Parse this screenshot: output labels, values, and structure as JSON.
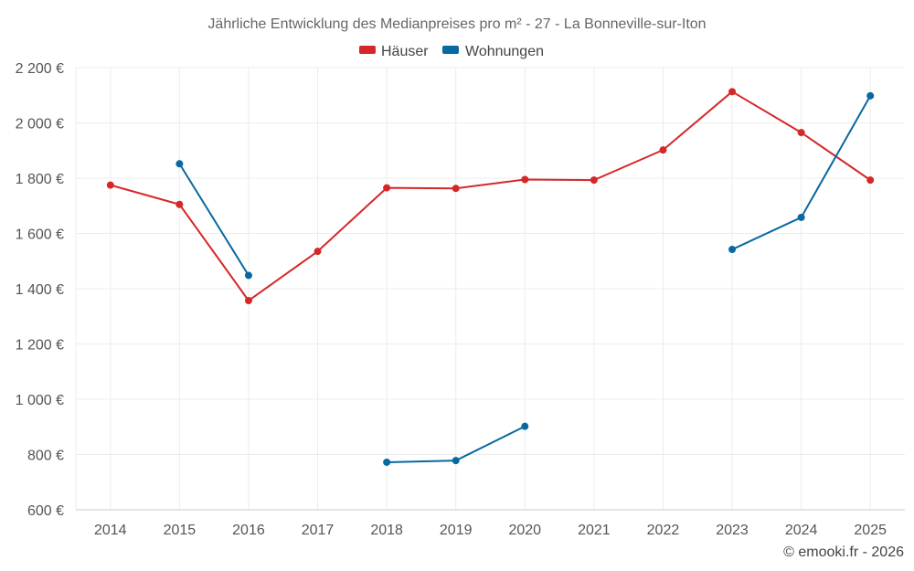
{
  "colors": {
    "haeuser": "#d62728",
    "wohnungen": "#0868a0"
  },
  "chart_data": {
    "type": "line",
    "title": "Jährliche Entwicklung des Medianpreises pro m² - 27 - La Bonneville-sur-Iton",
    "categories": [
      "2014",
      "2015",
      "2016",
      "2017",
      "2018",
      "2019",
      "2020",
      "2021",
      "2022",
      "2023",
      "2024",
      "2025"
    ],
    "ylim": [
      600,
      2200
    ],
    "yticks": [
      600,
      800,
      1000,
      1200,
      1400,
      1600,
      1800,
      2000,
      2200
    ],
    "ytick_labels": [
      "600 €",
      "800 €",
      "1 000 €",
      "1 200 €",
      "1 400 €",
      "1 600 €",
      "1 800 €",
      "2 000 €",
      "2 200 €"
    ],
    "legend_position": "top-center",
    "series": [
      {
        "name": "Häuser",
        "color": "#d62728",
        "values": [
          1775,
          1705,
          1357,
          1535,
          1765,
          1763,
          1795,
          1793,
          1902,
          2113,
          1965,
          1793
        ]
      },
      {
        "name": "Wohnungen",
        "color": "#0868a0",
        "values": [
          null,
          1852,
          1448,
          null,
          772,
          778,
          902,
          null,
          null,
          1542,
          1658,
          2098
        ]
      }
    ],
    "credit": "© emooki.fr - 2026"
  }
}
